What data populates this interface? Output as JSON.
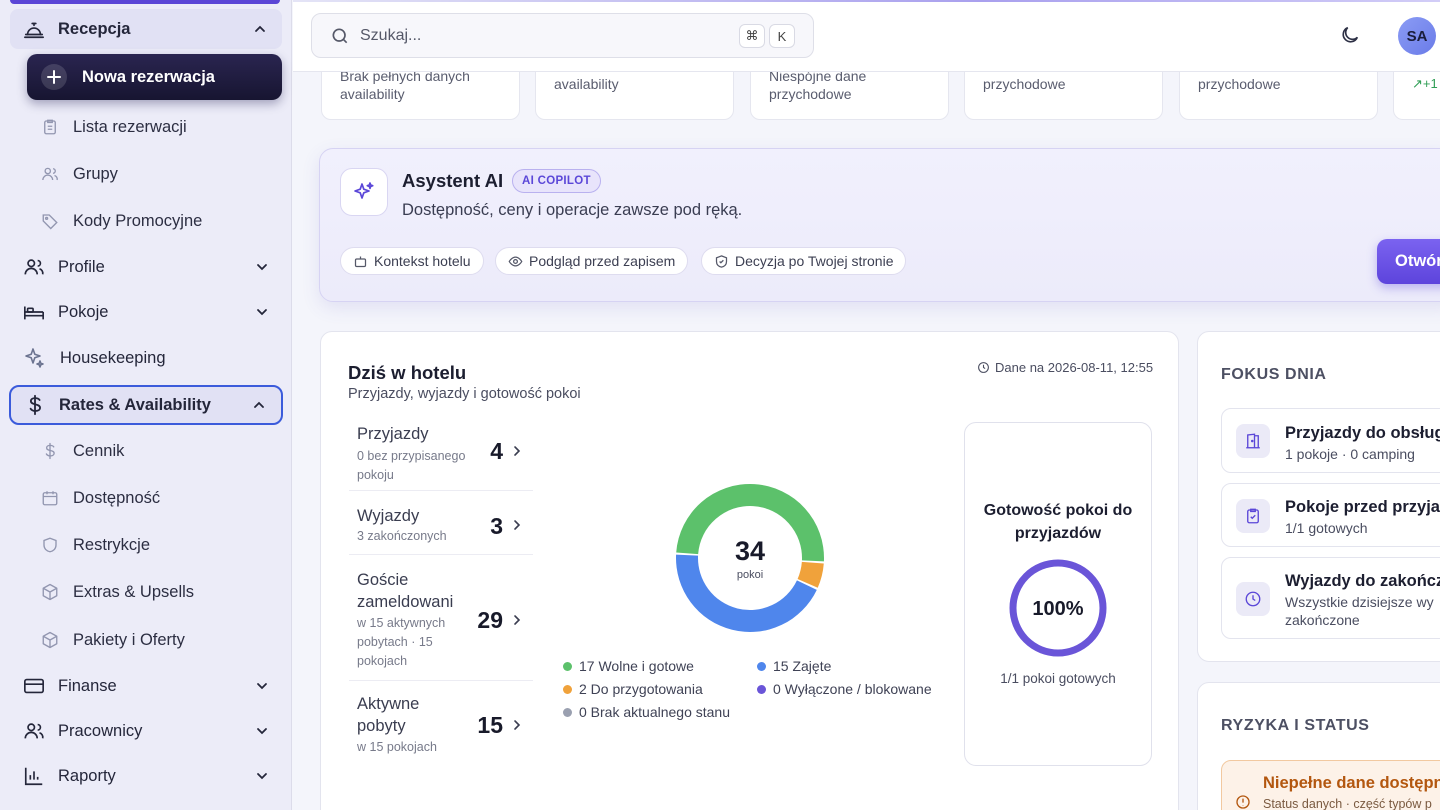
{
  "colors": {
    "accent": "#5b46d6",
    "free": "#5cc16b",
    "occupied": "#4f86ec",
    "prep": "#f0a23b",
    "blocked": "#6a55d8",
    "nostate": "#9aa0b0"
  },
  "sidebar": {
    "recepcja": {
      "label": "Recepcja",
      "icon": "bell-icon"
    },
    "new_reservation": "Nowa rezerwacja",
    "recepcja_items": [
      {
        "label": "Lista rezerwacji",
        "icon": "clipboard-icon"
      },
      {
        "label": "Grupy",
        "icon": "users-icon"
      },
      {
        "label": "Kody Promocyjne",
        "icon": "tag-icon"
      }
    ],
    "profile": "Profile",
    "pokoje": "Pokoje",
    "housekeeping": "Housekeeping",
    "rates": "Rates & Availability",
    "rates_items": [
      {
        "label": "Cennik",
        "icon": "dollar-icon"
      },
      {
        "label": "Dostępność",
        "icon": "calendar-icon"
      },
      {
        "label": "Restrykcje",
        "icon": "shield-icon"
      },
      {
        "label": "Extras & Upsells",
        "icon": "box-icon"
      },
      {
        "label": "Pakiety i Oferty",
        "icon": "package-icon"
      }
    ],
    "finanse": "Finanse",
    "pracownicy": "Pracownicy",
    "raporty": "Raporty"
  },
  "search": {
    "placeholder": "Szukaj...",
    "kbd1": "⌘",
    "kbd2": "K"
  },
  "user": {
    "initials": "SA"
  },
  "top_cards": [
    {
      "line1": "Brak pełnych danych",
      "line2": "availability"
    },
    {
      "line1": "",
      "line2": "availability"
    },
    {
      "line1": "Niespójne dane",
      "line2": "przychodowe"
    },
    {
      "line1": "",
      "line2": "przychodowe"
    },
    {
      "line1": "",
      "line2": "przychodowe"
    },
    {
      "line1": "",
      "line2": "↗+1"
    }
  ],
  "ai": {
    "title": "Asystent AI",
    "badge": "AI COPILOT",
    "subtitle": "Dostępność, ceny i operacje zawsze pod ręką.",
    "chips": [
      "Kontekst hotelu",
      "Podgląd przed zapisem",
      "Decyzja po Twojej stronie"
    ],
    "button": "Otwórz"
  },
  "today": {
    "title": "Dziś w hotelu",
    "subtitle": "Przyjazdy, wyjazdy i gotowość pokoi",
    "stamp": "Dane na 2026-08-11, 12:55",
    "stats": [
      {
        "label": "Przyjazdy",
        "sub": "0 bez przypisanego pokoju",
        "value": "4"
      },
      {
        "label": "Wyjazdy",
        "sub": "3 zakończonych",
        "value": "3"
      },
      {
        "label": "Goście zameldowani",
        "sub": "w 15 aktywnych pobytach · 15 pokojach",
        "value": "29"
      },
      {
        "label": "Aktywne pobyty",
        "sub": "w 15 pokojach",
        "value": "15"
      }
    ],
    "donut_total": "34",
    "donut_unit": "pokoi",
    "legend": [
      {
        "label": "17 Wolne i gotowe",
        "value": 17,
        "color": "#5cc16b"
      },
      {
        "label": "15 Zajęte",
        "value": 15,
        "color": "#4f86ec"
      },
      {
        "label": "2 Do przygotowania",
        "value": 2,
        "color": "#f0a23b"
      },
      {
        "label": "0 Wyłączone / blokowane",
        "value": 0,
        "color": "#6a55d8"
      },
      {
        "label": "0 Brak aktualnego stanu",
        "value": 0,
        "color": "#9aa0b0"
      }
    ],
    "readiness": {
      "title": "Gotowość pokoi do przyjazdów",
      "percent": "100%",
      "fraction": 1.0,
      "footer": "1/1 pokoi gotowych"
    }
  },
  "focus": {
    "header": "FOKUS DNIA",
    "items": [
      {
        "title": "Przyjazdy do obsług",
        "sub": "1 pokoje · 0 camping",
        "icon": "door-icon"
      },
      {
        "title": "Pokoje przed przyjaz",
        "sub": "1/1 gotowych",
        "icon": "clipboard-check-icon"
      },
      {
        "title": "Wyjazdy do zakończ",
        "sub": "Wszystkie dzisiejsze wy",
        "sub2": "zakończone",
        "icon": "clock-icon"
      }
    ]
  },
  "risks": {
    "header": "RYZYKA I STATUS",
    "warning_title": "Niepełne dane dostępno",
    "warning_sub": "Status danych · część typów p"
  }
}
